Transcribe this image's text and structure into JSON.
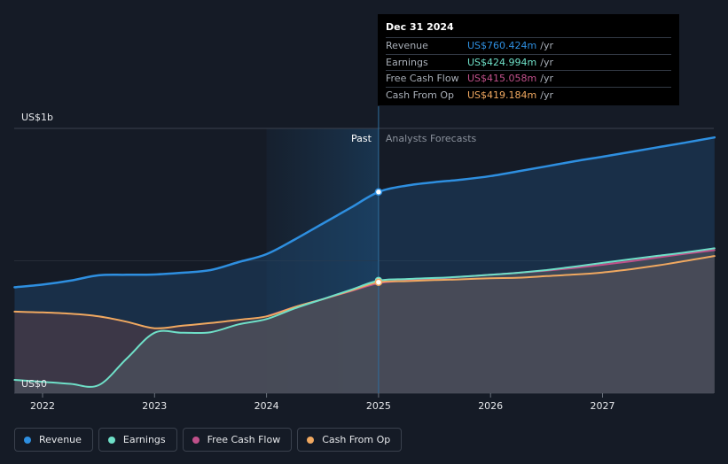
{
  "colors": {
    "revenue": "#2e8fe0",
    "earnings": "#6fe0c8",
    "free_cash_flow": "#c0508a",
    "cash_from_op": "#f0a860",
    "background": "#151b26"
  },
  "chart_data": {
    "type": "line",
    "x_ticks": [
      "2022",
      "2023",
      "2024",
      "2025",
      "2026",
      "2027"
    ],
    "y_axis": {
      "top_label": "US$1b",
      "bottom_label": "US$0",
      "ylim": [
        0,
        1000
      ]
    },
    "region_labels": {
      "past": "Past",
      "forecast": "Analysts Forecasts"
    },
    "divider_x": 2025.0,
    "series": [
      {
        "name": "Revenue",
        "color_key": "revenue",
        "points": [
          [
            2021.75,
            400
          ],
          [
            2022.0,
            410
          ],
          [
            2022.25,
            425
          ],
          [
            2022.5,
            445
          ],
          [
            2022.75,
            447
          ],
          [
            2023.0,
            448
          ],
          [
            2023.25,
            455
          ],
          [
            2023.5,
            465
          ],
          [
            2023.75,
            495
          ],
          [
            2024.0,
            525
          ],
          [
            2024.25,
            580
          ],
          [
            2024.5,
            640
          ],
          [
            2024.75,
            700
          ],
          [
            2025.0,
            760
          ],
          [
            2025.25,
            784
          ],
          [
            2025.5,
            797
          ],
          [
            2025.75,
            807
          ],
          [
            2026.0,
            820
          ],
          [
            2026.25,
            838
          ],
          [
            2026.5,
            857
          ],
          [
            2026.75,
            876
          ],
          [
            2027.0,
            893
          ],
          [
            2027.25,
            911
          ],
          [
            2027.5,
            929
          ],
          [
            2027.75,
            947
          ],
          [
            2028.0,
            966
          ]
        ]
      },
      {
        "name": "Earnings",
        "color_key": "earnings",
        "points": [
          [
            2021.75,
            50
          ],
          [
            2022.0,
            43
          ],
          [
            2022.25,
            35
          ],
          [
            2022.5,
            30
          ],
          [
            2022.75,
            130
          ],
          [
            2023.0,
            228
          ],
          [
            2023.25,
            228
          ],
          [
            2023.5,
            230
          ],
          [
            2023.75,
            260
          ],
          [
            2024.0,
            280
          ],
          [
            2024.25,
            320
          ],
          [
            2024.5,
            355
          ],
          [
            2024.75,
            390
          ],
          [
            2025.0,
            425
          ],
          [
            2025.25,
            431
          ],
          [
            2025.5,
            435
          ],
          [
            2025.75,
            440
          ],
          [
            2026.0,
            447
          ],
          [
            2026.25,
            455
          ],
          [
            2026.5,
            465
          ],
          [
            2026.75,
            478
          ],
          [
            2027.0,
            492
          ],
          [
            2027.25,
            506
          ],
          [
            2027.5,
            519
          ],
          [
            2027.75,
            532
          ],
          [
            2028.0,
            547
          ]
        ]
      },
      {
        "name": "Free Cash Flow",
        "color_key": "free_cash_flow",
        "points": [
          [
            2024.0,
            290
          ],
          [
            2024.25,
            325
          ],
          [
            2024.5,
            355
          ],
          [
            2024.75,
            385
          ],
          [
            2025.0,
            415
          ],
          [
            2025.25,
            425
          ],
          [
            2025.5,
            432
          ],
          [
            2025.75,
            440
          ],
          [
            2026.0,
            447
          ],
          [
            2026.25,
            455
          ],
          [
            2026.5,
            463
          ],
          [
            2026.75,
            473
          ],
          [
            2027.0,
            485
          ],
          [
            2027.25,
            498
          ],
          [
            2027.5,
            513
          ],
          [
            2027.75,
            527
          ],
          [
            2028.0,
            540
          ]
        ]
      },
      {
        "name": "Cash From Op",
        "color_key": "cash_from_op",
        "points": [
          [
            2021.75,
            308
          ],
          [
            2022.0,
            305
          ],
          [
            2022.25,
            300
          ],
          [
            2022.5,
            290
          ],
          [
            2022.75,
            270
          ],
          [
            2023.0,
            245
          ],
          [
            2023.25,
            255
          ],
          [
            2023.5,
            265
          ],
          [
            2023.75,
            277
          ],
          [
            2024.0,
            290
          ],
          [
            2024.25,
            325
          ],
          [
            2024.5,
            355
          ],
          [
            2024.75,
            387
          ],
          [
            2025.0,
            419
          ],
          [
            2025.25,
            423
          ],
          [
            2025.5,
            427
          ],
          [
            2025.75,
            430
          ],
          [
            2026.0,
            434
          ],
          [
            2026.25,
            436
          ],
          [
            2026.5,
            442
          ],
          [
            2026.75,
            448
          ],
          [
            2027.0,
            456
          ],
          [
            2027.25,
            468
          ],
          [
            2027.5,
            483
          ],
          [
            2027.75,
            500
          ],
          [
            2028.0,
            518
          ]
        ]
      }
    ],
    "tooltip": {
      "date": "Dec 31 2024",
      "rows": [
        {
          "label": "Revenue",
          "value": "US$760.424m",
          "unit": "/yr",
          "color_key": "revenue"
        },
        {
          "label": "Earnings",
          "value": "US$424.994m",
          "unit": "/yr",
          "color_key": "earnings"
        },
        {
          "label": "Free Cash Flow",
          "value": "US$415.058m",
          "unit": "/yr",
          "color_key": "free_cash_flow"
        },
        {
          "label": "Cash From Op",
          "value": "US$419.184m",
          "unit": "/yr",
          "color_key": "cash_from_op"
        }
      ]
    }
  },
  "legend": [
    {
      "label": "Revenue",
      "color_key": "revenue",
      "icon": "dot-icon"
    },
    {
      "label": "Earnings",
      "color_key": "earnings",
      "icon": "dot-icon"
    },
    {
      "label": "Free Cash Flow",
      "color_key": "free_cash_flow",
      "icon": "dot-icon"
    },
    {
      "label": "Cash From Op",
      "color_key": "cash_from_op",
      "icon": "dot-icon"
    }
  ]
}
